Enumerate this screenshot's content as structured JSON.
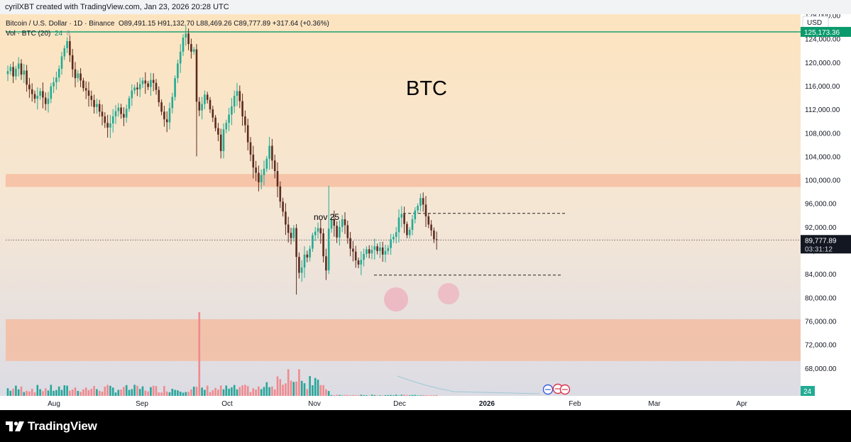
{
  "header": {
    "attribution": "cyrilXBT created with TradingView.com, Jan 23, 2026 20:28 UTC"
  },
  "legend": {
    "symbol": "Bitcoin / U.S. Dollar · 1D · Binance",
    "ohlc": "O89,491.15  H91,132.70  L88,469.26  C89,777.89  +317.64 (+0.36%)",
    "vol_label": "Vol · BTC (20)",
    "vol_value": "24",
    "vol_extra": "8"
  },
  "annotations": {
    "title": "BTC",
    "nov_label": "nov 25"
  },
  "price_axis": {
    "currency": "USD",
    "ticks": [
      "128,000.00",
      "124,000.00",
      "120,000.00",
      "116,000.00",
      "112,000.00",
      "108,000.00",
      "104,000.00",
      "100,000.00",
      "96,000.00",
      "92,000.00",
      "88,000.00",
      "84,000.00",
      "80,000.00",
      "76,000.00",
      "72,000.00",
      "68,000.00"
    ],
    "high_line_label": "125,173.36",
    "last_price_label": "89,777.89",
    "countdown": "03:31:12",
    "volume_badge": "24"
  },
  "time_axis": {
    "labels": [
      "Aug",
      "Sep",
      "Oct",
      "Nov",
      "Dec",
      "2026",
      "Feb",
      "Mar",
      "Apr"
    ]
  },
  "footer": {
    "brand": "TradingView"
  },
  "colors": {
    "up": "#22ab94",
    "down": "#5d2b20",
    "vol_up": "#26a69a",
    "vol_down": "#ef8a8e",
    "level_line": "#0a9a6c",
    "zone": "#f5b89a"
  },
  "chart_data": {
    "type": "candlestick",
    "title": "BTC",
    "symbol": "BTCUSD",
    "interval": "1D",
    "ylim": [
      67000,
      130000
    ],
    "x": [
      "Aug",
      "Sep",
      "Oct",
      "Nov",
      "Dec",
      "2026",
      "Feb",
      "Mar",
      "Apr"
    ],
    "levels": [
      {
        "name": "high",
        "value": 125173.36
      },
      {
        "name": "last",
        "value": 89777.89
      },
      {
        "name": "range_top",
        "value": 94300
      },
      {
        "name": "range_bottom",
        "value": 83800
      }
    ],
    "zones": [
      {
        "from": 98800,
        "to": 101000
      },
      {
        "from": 69200,
        "to": 76300
      }
    ],
    "closes": [
      118500,
      119200,
      117600,
      118900,
      119800,
      117900,
      118600,
      116200,
      115400,
      114600,
      113800,
      114300,
      115100,
      114000,
      112900,
      113800,
      115900,
      116600,
      117400,
      118900,
      121000,
      122400,
      123600,
      121200,
      118800,
      117300,
      118100,
      116900,
      115600,
      115200,
      114300,
      113600,
      112400,
      112900,
      111600,
      110800,
      109700,
      108900,
      109600,
      110800,
      111700,
      112300,
      111200,
      110600,
      112100,
      113900,
      115200,
      115700,
      115400,
      116300,
      116900,
      116400,
      115800,
      117000,
      116500,
      115300,
      113200,
      111600,
      110300,
      109800,
      112200,
      114100,
      117300,
      119800,
      121800,
      124200,
      124900,
      123100,
      121800,
      122200,
      113300,
      111800,
      112900,
      114500,
      113600,
      112000,
      110600,
      108800,
      107700,
      104900,
      108600,
      109700,
      111100,
      112500,
      114300,
      115100,
      113400,
      110800,
      109300,
      106400,
      104300,
      102100,
      101200,
      99600,
      100800,
      101900,
      103600,
      105800,
      103300,
      101500,
      98900,
      96300,
      94600,
      92400,
      91000,
      90100,
      91800,
      86900,
      84200,
      85100,
      87300,
      86800,
      88300,
      90600,
      91200,
      91800,
      90900,
      87000,
      84600,
      91700,
      93300,
      92200,
      90200,
      92000,
      93300,
      92300,
      90100,
      88300,
      87800,
      86300,
      85600,
      86400,
      87400,
      88200,
      87500,
      88100,
      88700,
      87900,
      88500,
      87300,
      87900,
      88400,
      89900,
      90300,
      91100,
      93600,
      94200,
      92500,
      90600,
      91500,
      93300,
      94800,
      95600,
      96900,
      95800,
      93800,
      92400,
      91400,
      89900,
      89778
    ],
    "volume_trend": "spike on Oct 10 crash day; elevated volume through Nov; low volume Dec–Jan"
  }
}
